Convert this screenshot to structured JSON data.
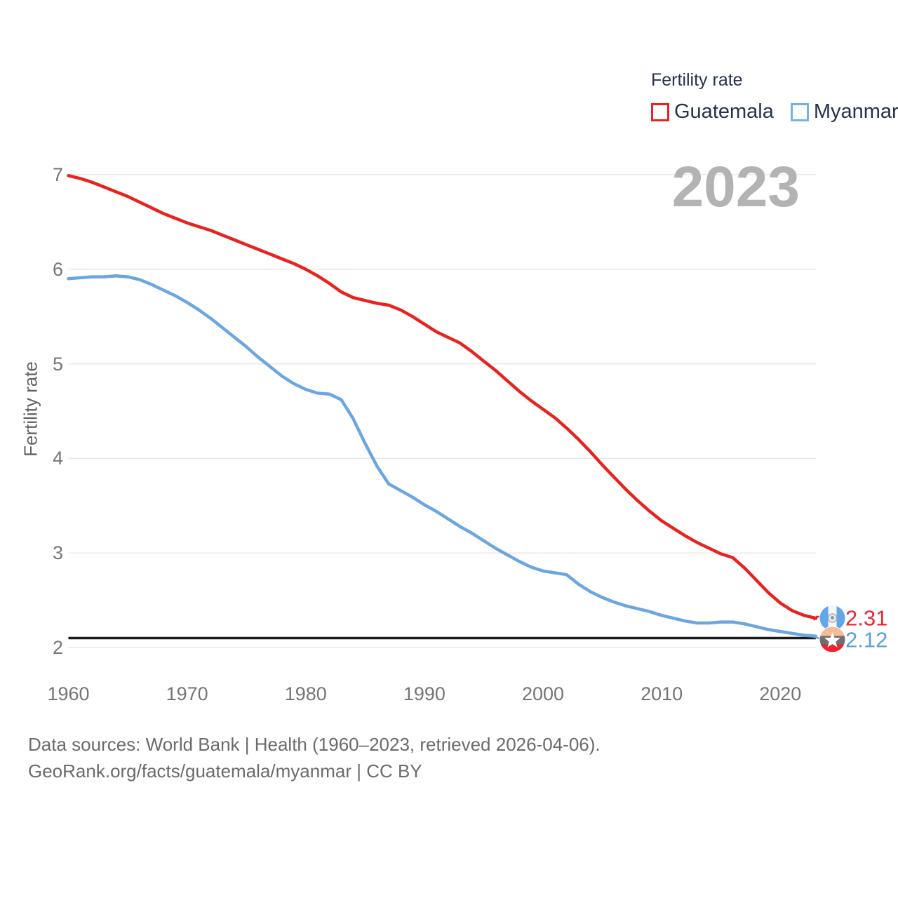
{
  "legend": {
    "title": "Fertility rate",
    "items": [
      {
        "label": "Guatemala",
        "color": "#e8231f"
      },
      {
        "label": "Myanmar",
        "color": "#74b2e8"
      }
    ]
  },
  "watermark": "2023",
  "y_axis": {
    "title": "Fertility rate",
    "ticks": [
      7,
      6,
      5,
      4,
      3,
      2
    ]
  },
  "x_axis": {
    "ticks": [
      1960,
      1970,
      1980,
      1990,
      2000,
      2010,
      2020
    ]
  },
  "end_labels": [
    {
      "series": "Guatemala",
      "value": "2.31",
      "color": "#e8282f",
      "flag": "guatemala-flag"
    },
    {
      "series": "Myanmar",
      "value": "2.12",
      "color": "#5d9fdc",
      "flag": "myanmar-flag"
    }
  ],
  "footer": {
    "line1": "Data sources: World Bank | Health (1960–2023, retrieved 2026-04-06).",
    "line2": "GeoRank.org/facts/guatemala/myanmar | CC BY"
  },
  "chart_data": {
    "type": "line",
    "title": "Fertility rate",
    "xlabel": "",
    "ylabel": "Fertility rate",
    "xlim": [
      1960,
      2023
    ],
    "ylim": [
      2,
      7
    ],
    "grid": "horizontal",
    "legend_position": "top-right",
    "replacement_line": 2.1,
    "x": [
      1960,
      1961,
      1962,
      1963,
      1964,
      1965,
      1966,
      1967,
      1968,
      1969,
      1970,
      1971,
      1972,
      1973,
      1974,
      1975,
      1976,
      1977,
      1978,
      1979,
      1980,
      1981,
      1982,
      1983,
      1984,
      1985,
      1986,
      1987,
      1988,
      1989,
      1990,
      1991,
      1992,
      1993,
      1994,
      1995,
      1996,
      1997,
      1998,
      1999,
      2000,
      2001,
      2002,
      2003,
      2004,
      2005,
      2006,
      2007,
      2008,
      2009,
      2010,
      2011,
      2012,
      2013,
      2014,
      2015,
      2016,
      2017,
      2018,
      2019,
      2020,
      2021,
      2022,
      2023
    ],
    "series": [
      {
        "name": "Guatemala",
        "color": "#e8231f",
        "end_value": 2.31,
        "values": [
          6.99,
          6.96,
          6.92,
          6.87,
          6.82,
          6.77,
          6.71,
          6.65,
          6.59,
          6.54,
          6.49,
          6.45,
          6.41,
          6.36,
          6.31,
          6.26,
          6.21,
          6.16,
          6.11,
          6.06,
          6.0,
          5.93,
          5.85,
          5.76,
          5.7,
          5.67,
          5.64,
          5.62,
          5.57,
          5.5,
          5.42,
          5.34,
          5.28,
          5.22,
          5.13,
          5.03,
          4.93,
          4.82,
          4.71,
          4.61,
          4.52,
          4.43,
          4.32,
          4.2,
          4.07,
          3.93,
          3.8,
          3.67,
          3.55,
          3.44,
          3.34,
          3.26,
          3.18,
          3.11,
          3.05,
          2.99,
          2.95,
          2.84,
          2.71,
          2.58,
          2.47,
          2.39,
          2.34,
          2.31
        ]
      },
      {
        "name": "Myanmar",
        "color": "#6ca6e0",
        "end_value": 2.12,
        "values": [
          5.9,
          5.91,
          5.92,
          5.92,
          5.93,
          5.92,
          5.89,
          5.84,
          5.78,
          5.72,
          5.65,
          5.57,
          5.48,
          5.38,
          5.28,
          5.18,
          5.07,
          4.97,
          4.87,
          4.79,
          4.73,
          4.69,
          4.68,
          4.62,
          4.42,
          4.16,
          3.92,
          3.73,
          3.66,
          3.59,
          3.51,
          3.44,
          3.36,
          3.28,
          3.21,
          3.13,
          3.05,
          2.98,
          2.91,
          2.85,
          2.81,
          2.79,
          2.77,
          2.67,
          2.59,
          2.53,
          2.48,
          2.44,
          2.41,
          2.38,
          2.34,
          2.31,
          2.28,
          2.26,
          2.26,
          2.27,
          2.27,
          2.25,
          2.22,
          2.19,
          2.17,
          2.15,
          2.13,
          2.12
        ]
      }
    ]
  }
}
